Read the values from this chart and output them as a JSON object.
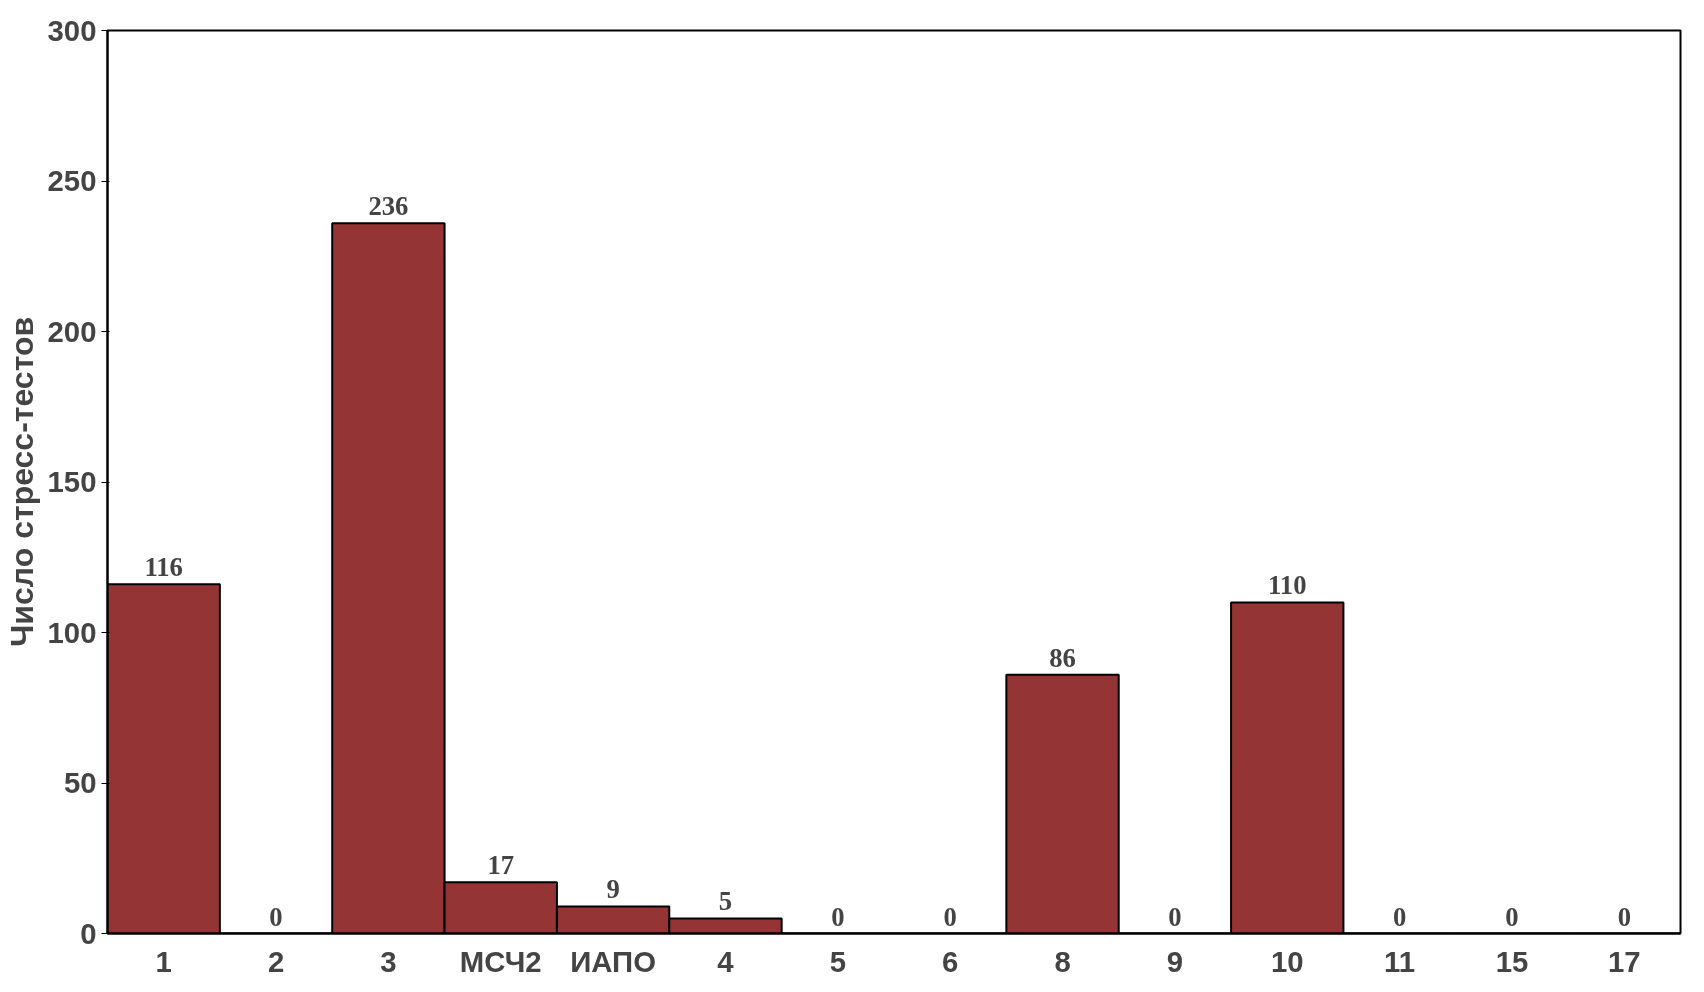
{
  "chart_data": {
    "type": "bar",
    "ylabel": "Число стресс-тестов",
    "categories": [
      "1",
      "2",
      "3",
      "МСЧ2",
      "ИАПО",
      "4",
      "5",
      "6",
      "8",
      "9",
      "10",
      "11",
      "15",
      "17"
    ],
    "values": [
      116,
      0,
      236,
      17,
      9,
      5,
      0,
      0,
      86,
      0,
      110,
      0,
      0,
      0
    ],
    "color": "#943434",
    "ylim": [
      0,
      300
    ],
    "yticks": [
      0,
      50,
      100,
      150,
      200,
      250,
      300
    ],
    "grid": false,
    "data_labels": true
  }
}
